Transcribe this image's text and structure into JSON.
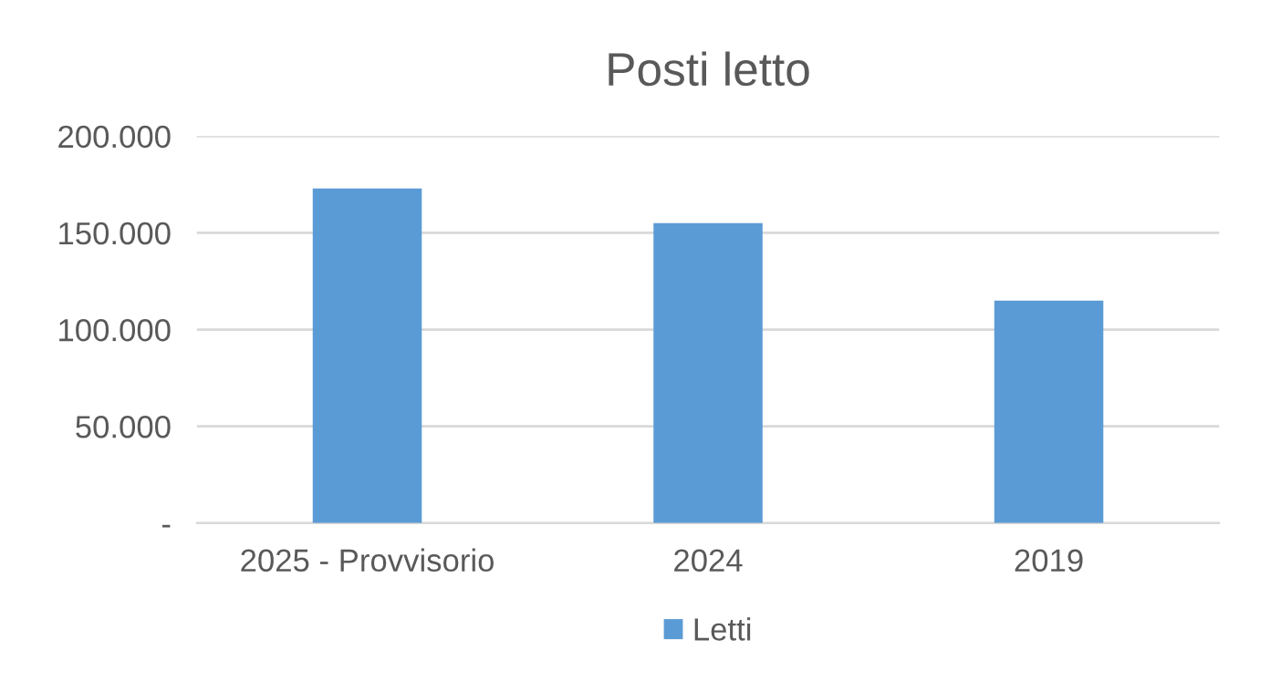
{
  "chart_data": {
    "type": "bar",
    "title": "Posti letto",
    "categories": [
      "2025 - Provvisorio",
      "2024",
      "2019"
    ],
    "series": [
      {
        "name": "Letti",
        "color": "#5b9bd5",
        "values": [
          173000,
          155000,
          115000
        ]
      }
    ],
    "ylim": [
      0,
      200000
    ],
    "yticks": [
      {
        "value": 0,
        "label": "-"
      },
      {
        "value": 50000,
        "label": "50.000"
      },
      {
        "value": 100000,
        "label": "100.000"
      },
      {
        "value": 150000,
        "label": "150.000"
      },
      {
        "value": 200000,
        "label": "200.000"
      }
    ],
    "grid": "y",
    "legend": "bottom"
  }
}
